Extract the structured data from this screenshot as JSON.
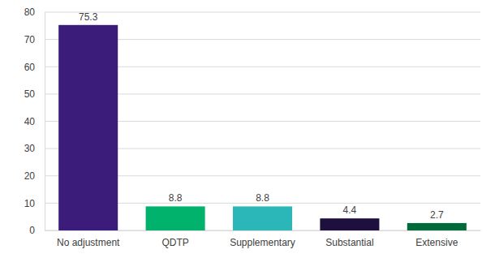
{
  "chart_data": {
    "type": "bar",
    "categories": [
      "No adjustment",
      "QDTP",
      "Supplementary",
      "Substantial",
      "Extensive"
    ],
    "values": [
      75.3,
      8.8,
      8.8,
      4.4,
      2.7
    ],
    "colors": [
      "#3b1c7a",
      "#00b26b",
      "#2bb6b8",
      "#1e0f3f",
      "#006b3a"
    ],
    "ylim": [
      0,
      80
    ],
    "yticks": [
      0,
      10,
      20,
      30,
      40,
      50,
      60,
      70,
      80
    ],
    "grid": true,
    "data_labels": true
  }
}
